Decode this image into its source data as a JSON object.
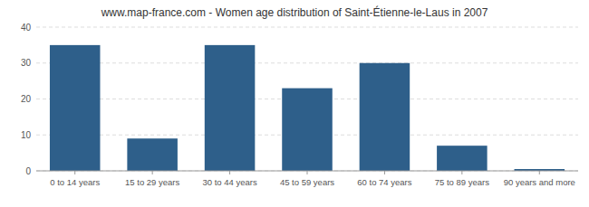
{
  "chart_data": {
    "type": "bar",
    "title": "www.map-france.com - Women age distribution of Saint-Étienne-le-Laus in 2007",
    "categories": [
      "0 to 14 years",
      "15 to 29 years",
      "30 to 44 years",
      "45 to 59 years",
      "60 to 74 years",
      "75 to 89 years",
      "90 years and more"
    ],
    "values": [
      35,
      9,
      35,
      23,
      30,
      7,
      0.5
    ],
    "color": "#2e5f8a",
    "ylim": [
      0,
      40
    ],
    "yticks": [
      0,
      10,
      20,
      30,
      40
    ],
    "grid": true
  }
}
